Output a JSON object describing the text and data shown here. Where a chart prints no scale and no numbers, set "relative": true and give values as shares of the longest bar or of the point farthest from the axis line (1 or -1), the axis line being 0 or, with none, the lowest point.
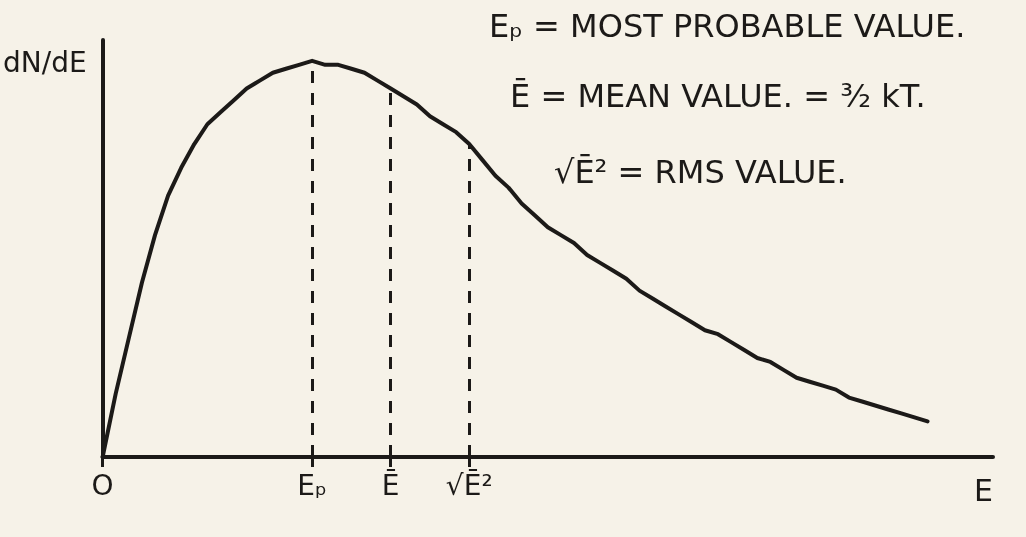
{
  "chart_data": {
    "type": "line",
    "relative": true,
    "xlabel": "E",
    "ylabel": "dN/dE",
    "marker": "none",
    "grid": false,
    "categories": [
      "O",
      null,
      null,
      null,
      null,
      null,
      null,
      null,
      null,
      null,
      null,
      null,
      null,
      null,
      null,
      null,
      "Eₚ",
      null,
      null,
      null,
      null,
      null,
      "Ē",
      null,
      null,
      null,
      null,
      null,
      "√Ē²",
      null,
      null,
      null,
      null,
      null,
      null,
      null,
      null,
      null,
      null,
      null,
      null,
      null,
      null,
      null,
      null,
      null,
      null,
      null,
      null,
      null,
      null,
      null,
      null,
      null,
      null,
      null,
      null,
      null,
      null,
      null,
      null,
      null,
      null,
      null,
      null,
      null,
      null,
      null,
      null
    ],
    "series": [
      {
        "color": "#1c1a18",
        "values": [
          0,
          0.16,
          0.3,
          0.44,
          0.56,
          0.66,
          0.73,
          0.79,
          0.84,
          0.87,
          0.9,
          0.93,
          0.95,
          0.97,
          0.98,
          0.99,
          1,
          0.99,
          0.99,
          0.98,
          0.97,
          0.95,
          0.93,
          0.91,
          0.89,
          0.86,
          0.84,
          0.82,
          0.79,
          0.75,
          0.71,
          0.68,
          0.64,
          0.61,
          0.58,
          0.56,
          0.54,
          0.51,
          0.49,
          0.47,
          0.45,
          0.42,
          0.4,
          0.38,
          0.36,
          0.34,
          0.32,
          0.31,
          0.29,
          0.27,
          0.25,
          0.24,
          0.22,
          0.2,
          0.19,
          0.18,
          0.17,
          0.15,
          0.14,
          0.13,
          0.12,
          0.11,
          0.1,
          0.09,
          null,
          null,
          null,
          null,
          null
        ]
      }
    ],
    "ref_lines": [
      {
        "axis": "x",
        "value": "Eₚ",
        "line_style": "dashed",
        "color": "#1c1a18"
      },
      {
        "axis": "x",
        "value": "Ē",
        "line_style": "dashed",
        "color": "#1c1a18"
      },
      {
        "axis": "x",
        "value": "√Ē²",
        "line_style": "dashed",
        "color": "#1c1a18"
      }
    ],
    "annotations": [
      "Eₚ = MOST PROBABLE VALUE.",
      "Ē = MEAN VALUE. = ³⁄₂ kT.",
      "√Ē² = RMS VALUE."
    ]
  }
}
